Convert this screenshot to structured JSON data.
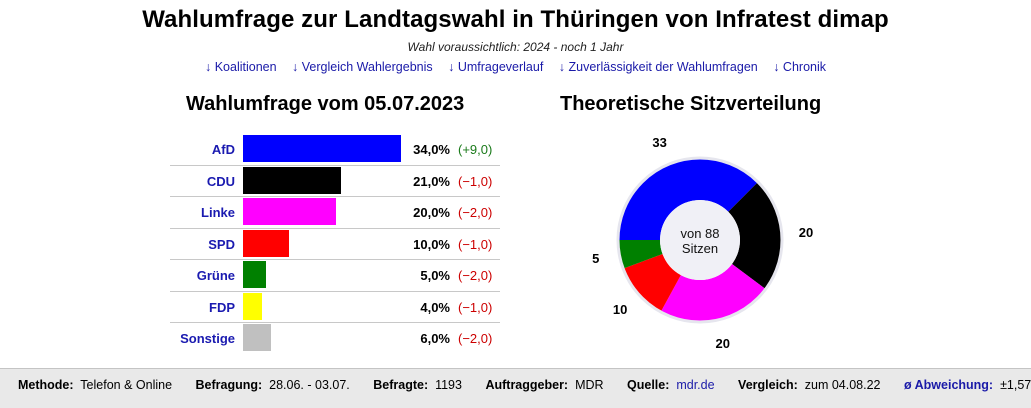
{
  "header": {
    "title": "Wahlumfrage zur Landtagswahl in Thüringen von Infratest dimap",
    "subtitle": "Wahl voraussichtlich: 2024 - noch 1 Jahr",
    "links": [
      "↓ Koalitionen",
      "↓ Vergleich Wahlergebnis",
      "↓ Umfrageverlauf",
      "↓ Zuverlässigkeit der Wahlumfragen",
      "↓ Chronik"
    ]
  },
  "chart_data": [
    {
      "type": "bar",
      "orientation": "horizontal",
      "title": "Wahlumfrage vom 05.07.2023",
      "categories": [
        "AfD",
        "CDU",
        "Linke",
        "SPD",
        "Grüne",
        "FDP",
        "Sonstige"
      ],
      "values": [
        34.0,
        21.0,
        20.0,
        10.0,
        5.0,
        4.0,
        6.0
      ],
      "value_labels": [
        "34,0%",
        "21,0%",
        "20,0%",
        "10,0%",
        "5,0%",
        "4,0%",
        "6,0%"
      ],
      "changes": [
        9.0,
        -1.0,
        -2.0,
        -1.0,
        -2.0,
        -1.0,
        -2.0
      ],
      "change_labels": [
        "+9,0",
        "−1,0",
        "−2,0",
        "−1,0",
        "−2,0",
        "−1,0",
        "−2,0"
      ],
      "colors": [
        "#0000ff",
        "#000000",
        "#ff00ff",
        "#ff0000",
        "#008000",
        "#ffff00",
        "#c0c0c0"
      ],
      "xlim": [
        0,
        34.0
      ]
    },
    {
      "type": "pie",
      "variant": "donut",
      "title": "Theoretische Sitzverteilung",
      "center_label": "von 88 Sitzen",
      "categories": [
        "AfD",
        "CDU",
        "Linke",
        "SPD",
        "Grüne"
      ],
      "values": [
        33,
        20,
        20,
        10,
        5
      ],
      "colors": [
        "#0000ff",
        "#000000",
        "#ff00ff",
        "#ff0000",
        "#008000"
      ]
    }
  ],
  "footer": {
    "methode_label": "Methode:",
    "methode_value": "Telefon & Online",
    "befragung_label": "Befragung:",
    "befragung_value": "28.06. - 03.07.",
    "befragte_label": "Befragte:",
    "befragte_value": "1193",
    "auftraggeber_label": "Auftraggeber:",
    "auftraggeber_value": "MDR",
    "quelle_label": "Quelle:",
    "quelle_value": "mdr.de",
    "vergleich_label": "Vergleich:",
    "vergleich_value": "zum 04.08.22",
    "abweichung_label": "ø Abweichung:",
    "abweichung_value": "±1,57"
  }
}
